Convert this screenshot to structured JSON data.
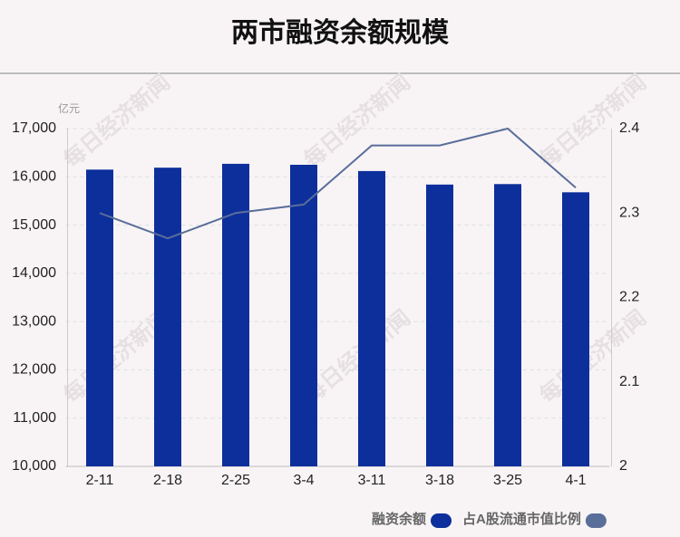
{
  "chart_data": {
    "type": "bar-line",
    "title": "两市融资余额规模",
    "y_unit": "亿元",
    "watermark": "每日经济新闻",
    "categories": [
      "2-11",
      "2-18",
      "2-25",
      "3-4",
      "3-11",
      "3-18",
      "3-25",
      "4-1"
    ],
    "series": [
      {
        "name": "融资余额",
        "color": "#0d2f9c",
        "type": "bar",
        "values": [
          16150,
          16190,
          16270,
          16250,
          16120,
          15840,
          15850,
          15680
        ]
      },
      {
        "name": "占A股流通市值比例",
        "color": "#5a6e9a",
        "type": "line",
        "axis": "y2",
        "values": [
          2.3,
          2.27,
          2.3,
          2.31,
          2.38,
          2.38,
          2.4,
          2.33
        ]
      }
    ],
    "ylim": [
      10000,
      17000
    ],
    "yticks": [
      {
        "value": 10000,
        "label": "10,000"
      },
      {
        "value": 11000,
        "label": "11,000"
      },
      {
        "value": 12000,
        "label": "12,000"
      },
      {
        "value": 13000,
        "label": "13,000"
      },
      {
        "value": 14000,
        "label": "14,000"
      },
      {
        "value": 15000,
        "label": "15,000"
      },
      {
        "value": 16000,
        "label": "16,000"
      },
      {
        "value": 17000,
        "label": "17,000"
      }
    ],
    "y2lim": [
      2,
      2.4
    ],
    "y2ticks": [
      2,
      2.1,
      2.2,
      2.3,
      2.4
    ],
    "grid": true
  }
}
